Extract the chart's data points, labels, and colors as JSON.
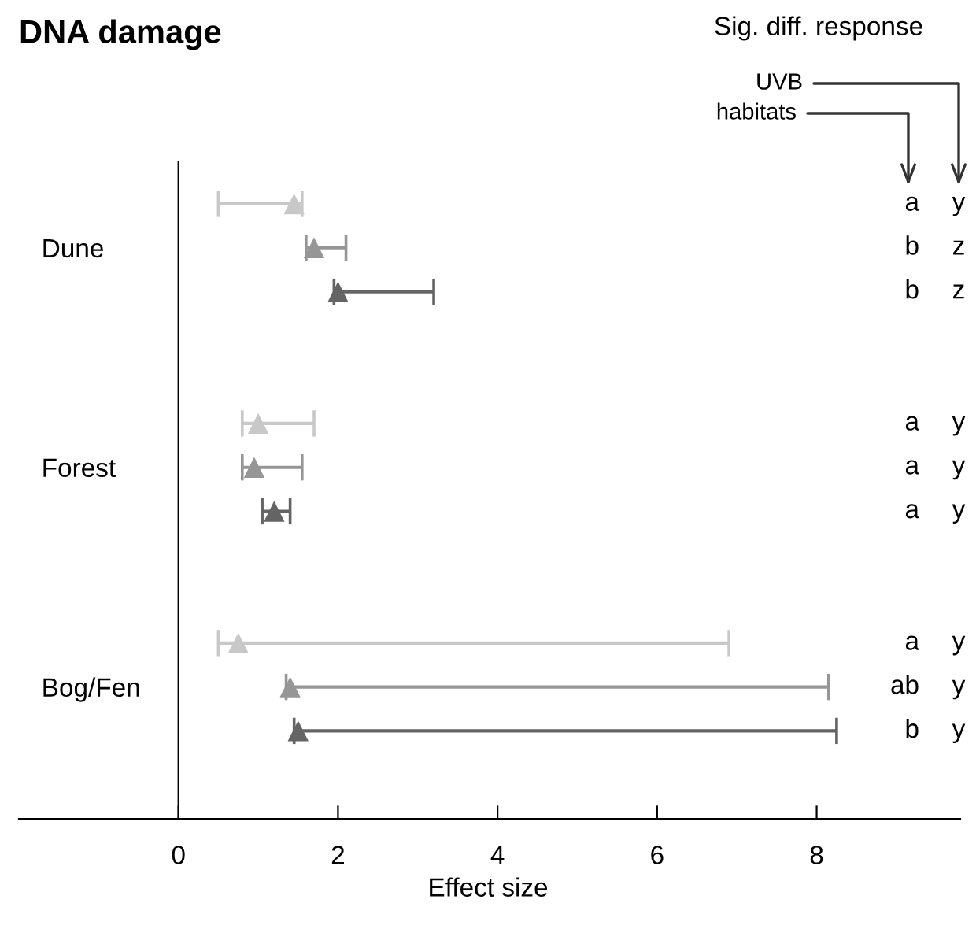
{
  "chart_data": {
    "type": "scatter",
    "orientation": "horizontal",
    "title": "DNA damage",
    "xlabel": "Effect size",
    "categories": [
      "Dune",
      "Forest",
      "Bog/Fen"
    ],
    "marker": "triangle",
    "grid": false,
    "legend": false,
    "xlim": [
      -2,
      9.8
    ],
    "xticks": [
      0,
      2,
      4,
      6,
      8
    ],
    "series": [
      {
        "color": "#c8c8c8",
        "values": [
          1.45,
          1.0,
          0.75
        ],
        "errors": [
          [
            0.5,
            1.55
          ],
          [
            0.8,
            1.7
          ],
          [
            0.5,
            6.9
          ]
        ]
      },
      {
        "color": "#969696",
        "values": [
          1.7,
          0.95,
          1.4
        ],
        "errors": [
          [
            1.6,
            2.1
          ],
          [
            0.8,
            1.55
          ],
          [
            1.35,
            8.15
          ]
        ]
      },
      {
        "color": "#646464",
        "values": [
          2.0,
          1.2,
          1.5
        ],
        "errors": [
          [
            1.95,
            3.2
          ],
          [
            1.05,
            1.4
          ],
          [
            1.45,
            8.25
          ]
        ]
      }
    ],
    "annotations": [
      "Sig. diff. response",
      "UVB",
      "habitats",
      "a",
      "y",
      "b",
      "z",
      "b",
      "z",
      "a",
      "y",
      "a",
      "y",
      "a",
      "y",
      "a",
      "y",
      "ab",
      "y",
      "b",
      "y"
    ]
  }
}
